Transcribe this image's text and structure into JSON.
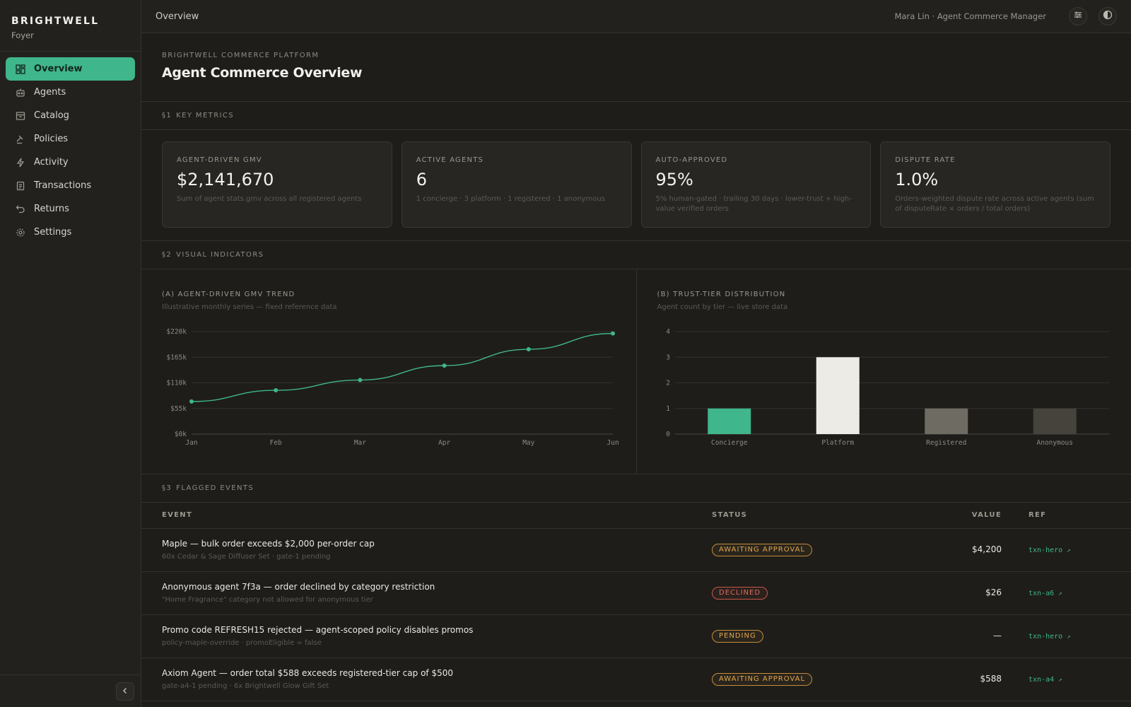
{
  "brand": {
    "name": "BRIGHTWELL",
    "sub": "Foyer"
  },
  "nav": [
    {
      "label": "Overview",
      "icon": "dashboard-icon",
      "active": true
    },
    {
      "label": "Agents",
      "icon": "bot-icon"
    },
    {
      "label": "Catalog",
      "icon": "store-icon"
    },
    {
      "label": "Policies",
      "icon": "gavel-icon"
    },
    {
      "label": "Activity",
      "icon": "bolt-icon"
    },
    {
      "label": "Transactions",
      "icon": "receipt-icon"
    },
    {
      "label": "Returns",
      "icon": "undo-icon"
    },
    {
      "label": "Settings",
      "icon": "gear-icon"
    }
  ],
  "topbar": {
    "title": "Overview",
    "user": "Mara Lin · Agent Commerce Manager",
    "icons": [
      "sliders-icon",
      "contrast-icon"
    ]
  },
  "page": {
    "eyebrow": "BRIGHTWELL COMMERCE PLATFORM",
    "title": "Agent Commerce Overview"
  },
  "sections": {
    "s1": {
      "num": "§1",
      "label": "KEY METRICS"
    },
    "s2": {
      "num": "§2",
      "label": "VISUAL INDICATORS"
    },
    "s3": {
      "num": "§3",
      "label": "FLAGGED EVENTS"
    }
  },
  "kpis": [
    {
      "label": "AGENT-DRIVEN GMV",
      "value": "$2,141,670",
      "note": "Sum of agent stats.gmv across all registered agents"
    },
    {
      "label": "ACTIVE AGENTS",
      "value": "6",
      "note": "1 concierge · 3 platform · 1 registered · 1 anonymous"
    },
    {
      "label": "AUTO-APPROVED",
      "value": "95%",
      "note": "5% human-gated · trailing 30 days · lower-trust + high-value verified orders"
    },
    {
      "label": "DISPUTE RATE",
      "value": "1.0%",
      "note": "Orders-weighted dispute rate across active agents (sum of disputeRate × orders / total orders)"
    }
  ],
  "charts": {
    "gmv": {
      "title": "(A) AGENT-DRIVEN GMV TREND",
      "sub": "Illustrative monthly series — fixed reference data"
    },
    "tiers": {
      "title": "(B) TRUST-TIER DISTRIBUTION",
      "sub": "Agent count by tier — live store data"
    }
  },
  "chart_data": [
    {
      "type": "line",
      "title": "(A) AGENT-DRIVEN GMV TREND",
      "x": [
        "Jan",
        "Feb",
        "Mar",
        "Apr",
        "May",
        "Jun"
      ],
      "series": [
        {
          "values": [
            70000,
            94000,
            116000,
            147000,
            182000,
            216000
          ]
        }
      ],
      "ylim": [
        0,
        220000
      ],
      "yticks": [
        0,
        55000,
        110000,
        165000,
        220000
      ],
      "ytick_labels": [
        "$0k",
        "$55k",
        "$110k",
        "$165k",
        "$220k"
      ],
      "color": "#3fb68b",
      "grid": true
    },
    {
      "type": "bar",
      "title": "(B) TRUST-TIER DISTRIBUTION",
      "categories": [
        "Concierge",
        "Platform",
        "Registered",
        "Anonymous"
      ],
      "values": [
        1,
        3,
        1,
        1
      ],
      "colors": [
        "#3fb68b",
        "#edebe6",
        "#6e6b62",
        "#45433c"
      ],
      "ylim": [
        0,
        4
      ],
      "yticks": [
        0,
        1,
        2,
        3,
        4
      ],
      "grid": true
    }
  ],
  "table": {
    "headers": {
      "event": "EVENT",
      "status": "STATUS",
      "value": "VALUE",
      "ref": "REF"
    },
    "rows": [
      {
        "title": "Maple — bulk order exceeds $2,000 per-order cap",
        "sub": "60x Cedar & Sage Diffuser Set · gate-1 pending",
        "status": "AWAITING APPROVAL",
        "kind": "await",
        "value": "$4,200",
        "ref": "txn-hero"
      },
      {
        "title": "Anonymous agent 7f3a — order declined by category restriction",
        "sub": "\"Home Fragrance\" category not allowed for anonymous tier",
        "status": "DECLINED",
        "kind": "decl",
        "value": "$26",
        "ref": "txn-a6"
      },
      {
        "title": "Promo code REFRESH15 rejected — agent-scoped policy disables promos",
        "sub": "policy-maple-override · promoEligible = false",
        "status": "PENDING",
        "kind": "pend",
        "value": "—",
        "ref": "txn-hero"
      },
      {
        "title": "Axiom Agent — order total $588 exceeds registered-tier cap of $500",
        "sub": "gate-a4-1 pending · 6x Brightwell Glow Gift Set",
        "status": "AWAITING APPROVAL",
        "kind": "await",
        "value": "$588",
        "ref": "txn-a4"
      }
    ]
  }
}
